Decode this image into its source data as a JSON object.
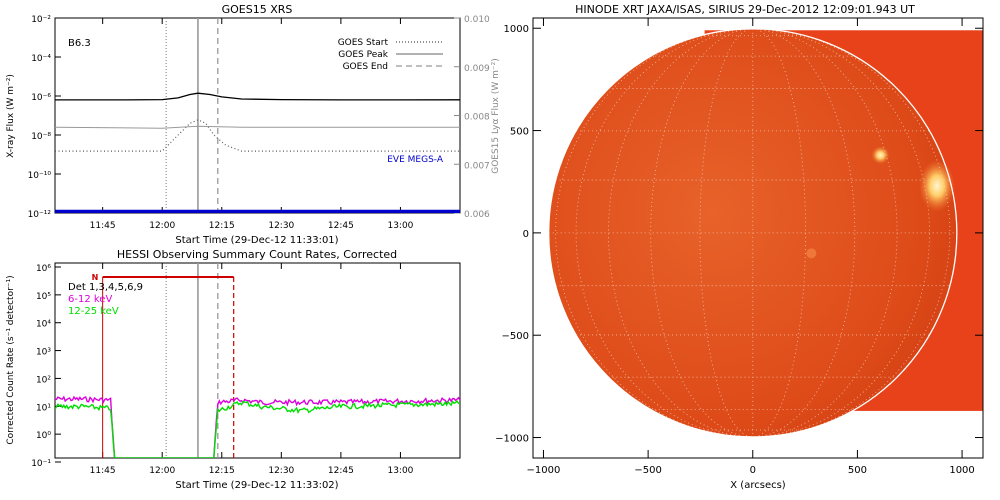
{
  "goes": {
    "title": "GOES15 XRS",
    "class_label": "B6.3",
    "ylabel_left": "X-ray Flux (W m⁻²)",
    "ylabel_right": "GOES15 Lyα Flux (W m⁻²)",
    "xlabel": "Start Time (29-Dec-12 11:33:01)",
    "left_ticks": [
      "10⁻²",
      "10⁻⁴",
      "10⁻⁶",
      "10⁻⁸",
      "10⁻¹⁰",
      "10⁻¹²"
    ],
    "right_ticks": [
      "0.010",
      "0.009",
      "0.008",
      "0.007",
      "0.006"
    ],
    "x_ticks": [
      "11:45",
      "12:00",
      "12:15",
      "12:30",
      "12:45",
      "13:00"
    ],
    "legend": [
      {
        "label": "GOES Start",
        "style": "dotted"
      },
      {
        "label": "GOES Peak",
        "style": "solid"
      },
      {
        "label": "GOES End",
        "style": "dashed"
      }
    ],
    "eve_label": "EVE MEGS-A",
    "colors": {
      "eve": "#0000cc",
      "peak": "#999999",
      "long": "#000000",
      "short": "#555555",
      "lya": "#999999"
    }
  },
  "hessi": {
    "title": "HESSI Observing Summary Count Rates, Corrected",
    "ylabel": "Corrected Count Rate (s⁻¹ detector⁻¹)",
    "xlabel": "Start Time (29-Dec-12 11:33:02)",
    "y_ticks": [
      "10⁶",
      "10⁵",
      "10⁴",
      "10³",
      "10²",
      "10¹",
      "10⁰",
      "10⁻¹"
    ],
    "x_ticks": [
      "11:45",
      "12:00",
      "12:15",
      "12:30",
      "12:45",
      "13:00"
    ],
    "det_label": "Det 1,3,4,5,6,9",
    "n_label": "N",
    "legend": [
      {
        "label": "6-12 keV",
        "color": "#dd00dd"
      },
      {
        "label": "12-25 keV",
        "color": "#00dd00"
      }
    ],
    "colors": {
      "red": "#cc0000"
    }
  },
  "xrt": {
    "title": "HINODE XRT JAXA/ISAS, SIRIUS 29-Dec-2012 12:09:01.943 UT",
    "xlabel": "X (arcsecs)",
    "x_ticks": [
      "−1000",
      "−500",
      "0",
      "500",
      "1000"
    ],
    "y_ticks": [
      "1000",
      "500",
      "0",
      "−500",
      "−1000"
    ]
  },
  "chart_data": [
    {
      "type": "line",
      "title": "GOES15 XRS",
      "xlabel": "Start Time (29-Dec-12 11:33:01)",
      "ylabel": "X-ray Flux (W m⁻²)",
      "y2label": "GOES15 Lyα Flux (W m⁻²)",
      "xlim": [
        "11:33",
        "13:15"
      ],
      "ylim": [
        1e-12,
        0.01
      ],
      "y_scale": "log",
      "y2lim": [
        0.006,
        0.01
      ],
      "series": [
        {
          "name": "long",
          "x": [
            "11:33",
            "11:50",
            "12:00",
            "12:04",
            "12:07",
            "12:09",
            "12:12",
            "12:15",
            "12:20",
            "12:30",
            "12:45",
            "13:00",
            "13:15"
          ],
          "y": [
            6.3e-07,
            6.3e-07,
            6.5e-07,
            8e-07,
            1.2e-06,
            1.4e-06,
            1.2e-06,
            9e-07,
            7e-07,
            6.5e-07,
            6.3e-07,
            6.3e-07,
            6.4e-07
          ]
        },
        {
          "name": "short",
          "x": [
            "11:33",
            "11:50",
            "12:00",
            "12:04",
            "12:07",
            "12:09",
            "12:11",
            "12:13",
            "12:16",
            "12:20",
            "12:45",
            "13:15"
          ],
          "y": [
            1.5e-09,
            1.5e-09,
            1.5e-09,
            1e-08,
            4e-08,
            6e-08,
            4e-08,
            1e-08,
            3e-09,
            1.5e-09,
            1.5e-09,
            1.5e-09
          ]
        },
        {
          "name": "lya",
          "x": [
            "11:33",
            "12:00",
            "12:09",
            "12:20",
            "13:15"
          ],
          "y2": [
            0.00776,
            0.00774,
            0.00778,
            0.00776,
            0.00776
          ]
        },
        {
          "name": "EVE MEGS-A",
          "x": [
            "11:33",
            "13:15"
          ],
          "y": [
            1.2e-12,
            1.2e-12
          ]
        }
      ],
      "markers": {
        "GOES Start": "12:01",
        "GOES Peak": "12:09",
        "GOES End": "12:14"
      }
    },
    {
      "type": "line",
      "title": "HESSI Observing Summary Count Rates, Corrected",
      "xlabel": "Start Time (29-Dec-12 11:33:02)",
      "ylabel": "Corrected Count Rate (s⁻¹ detector⁻¹)",
      "xlim": [
        "11:33",
        "13:15"
      ],
      "ylim": [
        0.1,
        1000000.0
      ],
      "y_scale": "log",
      "series": [
        {
          "name": "6-12 keV",
          "x": [
            "11:33",
            "11:40",
            "11:47",
            "11:48",
            "12:13",
            "12:14",
            "12:20",
            "12:25",
            "12:35",
            "12:45",
            "13:00",
            "13:15"
          ],
          "y": [
            13,
            13,
            12,
            0.1,
            0.1,
            10,
            12,
            10,
            10,
            10,
            11,
            12
          ]
        },
        {
          "name": "12-25 keV",
          "x": [
            "11:33",
            "11:40",
            "11:47",
            "11:48",
            "12:13",
            "12:14",
            "12:20",
            "12:25",
            "12:35",
            "12:45",
            "13:00",
            "13:15"
          ],
          "y": [
            7,
            7,
            6,
            0.1,
            0.1,
            5,
            10,
            7,
            5,
            7,
            8,
            9
          ]
        }
      ],
      "markers": {
        "GOES Start": "12:01",
        "GOES Peak": "12:09",
        "GOES End": "12:14",
        "night_start": "11:45",
        "night_end": "12:18"
      }
    },
    {
      "type": "heatmap",
      "title": "HINODE XRT JAXA/ISAS, SIRIUS 29-Dec-2012 12:09:01.943 UT",
      "xlabel": "X (arcsecs)",
      "xlim": [
        -1050,
        1100
      ],
      "ylim": [
        -1100,
        1050
      ],
      "image_extent": {
        "x": [
          -230,
          1100
        ],
        "y": [
          -870,
          990
        ]
      },
      "limb_radius": 975
    }
  ]
}
